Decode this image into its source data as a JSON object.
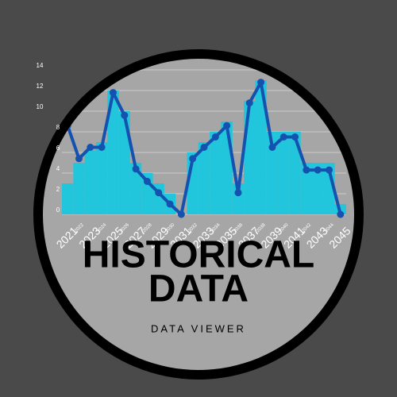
{
  "chart_data": {
    "type": "bar",
    "title": "HISTORICAL",
    "title_line2": "DATA",
    "subtitle": "DATA VIEWER",
    "categories": [
      "2021",
      "2022",
      "2023",
      "2024",
      "2025",
      "2026",
      "2027",
      "2028",
      "2029",
      "2030",
      "2031",
      "2032",
      "2033",
      "2034",
      "2035",
      "2036",
      "2037",
      "2038",
      "2039",
      "2040",
      "2041",
      "2042",
      "2043",
      "2044",
      "2045"
    ],
    "series": [
      {
        "type": "bar",
        "color": "#22c6dc",
        "values": [
          3,
          5,
          6.2,
          7,
          12,
          10,
          5,
          4,
          3,
          2,
          0,
          6,
          7,
          8,
          9,
          3,
          11,
          13,
          8,
          8,
          8,
          5,
          5,
          5,
          1
        ]
      },
      {
        "type": "line",
        "color": "#1552b0",
        "values": [
          8.6,
          5.4,
          6.5,
          6.5,
          11.8,
          9.6,
          4.4,
          3.2,
          2.1,
          1,
          0,
          5.4,
          6.5,
          7.5,
          8.6,
          2.1,
          10.8,
          12.8,
          6.5,
          7.5,
          7.5,
          4.3,
          4.3,
          4.3,
          0
        ]
      }
    ],
    "ylim": [
      0,
      14
    ],
    "yticks": [
      0,
      2,
      4,
      6,
      8,
      10,
      12,
      14
    ],
    "grid": true
  }
}
